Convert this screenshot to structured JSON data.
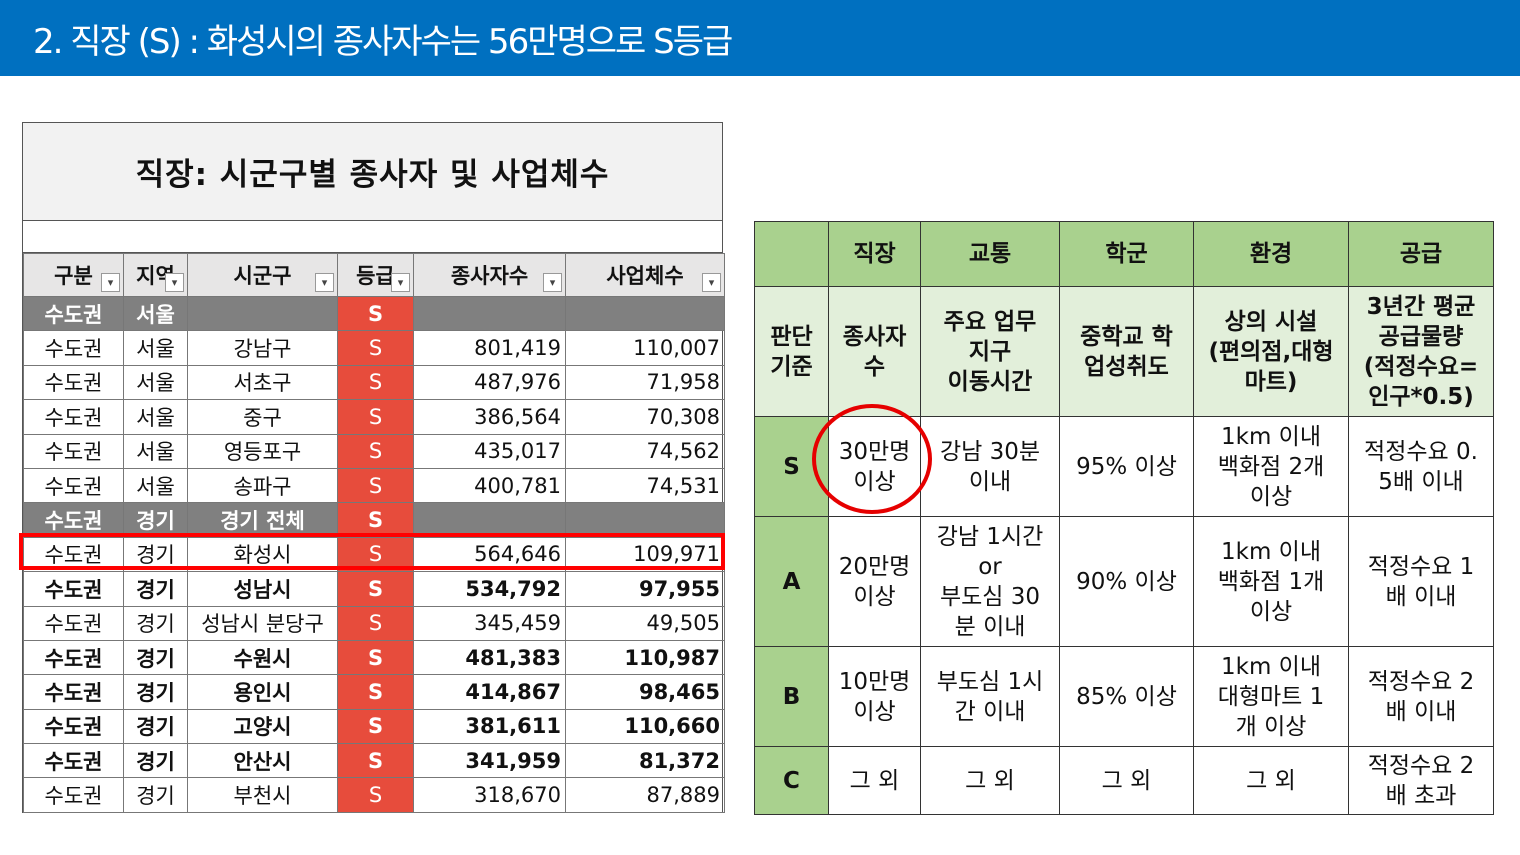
{
  "slide": {
    "title": "2. 직장 (S) : 화성시의 종사자수는 56만명으로 S등급"
  },
  "sheet": {
    "title": "직장: 시군구별 종사자 및 사업체수",
    "headers": [
      "구분",
      "지역",
      "시군구",
      "등급",
      "종사자수",
      "사업체수"
    ],
    "filter_glyph": "▾",
    "rows": [
      {
        "kind": "subtotal",
        "cells": [
          "수도권",
          "서울",
          "",
          "S",
          "",
          ""
        ]
      },
      {
        "kind": "normal",
        "cells": [
          "수도권",
          "서울",
          "강남구",
          "S",
          "801,419",
          "110,007"
        ]
      },
      {
        "kind": "normal",
        "cells": [
          "수도권",
          "서울",
          "서초구",
          "S",
          "487,976",
          "71,958"
        ]
      },
      {
        "kind": "normal",
        "cells": [
          "수도권",
          "서울",
          "중구",
          "S",
          "386,564",
          "70,308"
        ]
      },
      {
        "kind": "normal",
        "cells": [
          "수도권",
          "서울",
          "영등포구",
          "S",
          "435,017",
          "74,562"
        ]
      },
      {
        "kind": "normal",
        "cells": [
          "수도권",
          "서울",
          "송파구",
          "S",
          "400,781",
          "74,531"
        ]
      },
      {
        "kind": "subtotal",
        "cells": [
          "수도권",
          "경기",
          "경기 전체",
          "S",
          "",
          ""
        ]
      },
      {
        "kind": "normal",
        "cells": [
          "수도권",
          "경기",
          "화성시",
          "S",
          "564,646",
          "109,971"
        ]
      },
      {
        "kind": "bold",
        "cells": [
          "수도권",
          "경기",
          "성남시",
          "S",
          "534,792",
          "97,955"
        ]
      },
      {
        "kind": "normal",
        "cells": [
          "수도권",
          "경기",
          "성남시 분당구",
          "S",
          "345,459",
          "49,505"
        ]
      },
      {
        "kind": "bold",
        "cells": [
          "수도권",
          "경기",
          "수원시",
          "S",
          "481,383",
          "110,987"
        ]
      },
      {
        "kind": "bold",
        "cells": [
          "수도권",
          "경기",
          "용인시",
          "S",
          "414,867",
          "98,465"
        ]
      },
      {
        "kind": "bold",
        "cells": [
          "수도권",
          "경기",
          "고양시",
          "S",
          "381,611",
          "110,660"
        ]
      },
      {
        "kind": "bold",
        "cells": [
          "수도권",
          "경기",
          "안산시",
          "S",
          "341,959",
          "81,372"
        ]
      },
      {
        "kind": "normal",
        "cells": [
          "수도권",
          "경기",
          "부천시",
          "S",
          "318,670",
          "87,889"
        ]
      }
    ]
  },
  "criteria": {
    "headers": [
      "",
      "직장",
      "교통",
      "학군",
      "환경",
      "공급"
    ],
    "basis": {
      "label": "판단\n기준",
      "cells": [
        "종사자\n수",
        "주요 업무\n지구\n이동시간",
        "중학교 학\n업성취도",
        "상의 시설\n(편의점,대형\n마트)",
        "3년간 평균\n공급물량\n(적정수요=\n인구*0.5)"
      ]
    },
    "grades": [
      {
        "label": "S",
        "cells": [
          "30만명\n이상",
          "강남 30분\n이내",
          "95% 이상",
          "1km 이내\n백화점 2개\n이상",
          "적정수요 0.\n5배 이내"
        ]
      },
      {
        "label": "A",
        "cells": [
          "20만명\n이상",
          "강남 1시간\nor\n부도심 30\n분 이내",
          "90% 이상",
          "1km 이내\n백화점 1개\n이상",
          "적정수요 1\n배 이내"
        ]
      },
      {
        "label": "B",
        "cells": [
          "10만명\n이상",
          "부도심 1시\n간 이내",
          "85% 이상",
          "1km 이내\n대형마트 1\n개 이상",
          "적정수요 2\n배 이내"
        ]
      },
      {
        "label": "C",
        "cells": [
          "그 외",
          "그 외",
          "그 외",
          "그 외",
          "적정수요 2\n배 초과"
        ]
      }
    ]
  },
  "colors": {
    "header_bar": "#0070c0",
    "grade_cell": "#e74c3c",
    "highlight": "#ff0000",
    "criteria_header": "#a9d18e",
    "criteria_basis": "#e2efda"
  }
}
